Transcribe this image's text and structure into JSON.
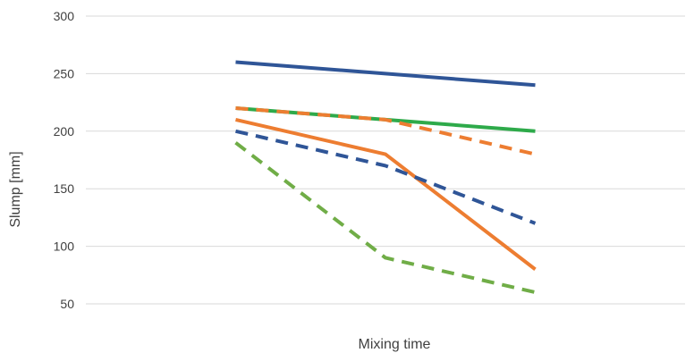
{
  "chart_data": {
    "type": "line",
    "title": "",
    "xlabel": "Mixing time",
    "ylabel": "Slump [mm]",
    "x": [
      1,
      2,
      3
    ],
    "xlim": [
      0,
      4
    ],
    "ylim": [
      50,
      300
    ],
    "yticks": [
      50,
      100,
      150,
      200,
      250,
      300
    ],
    "grid": true,
    "legend": "none",
    "series": [
      {
        "color": "#2f5597",
        "dash": "solid",
        "values": [
          260,
          250,
          240
        ]
      },
      {
        "color": "#2eaa4a",
        "dash": "solid",
        "values": [
          220,
          210,
          200
        ]
      },
      {
        "color": "#ed7d31",
        "dash": "dashed",
        "values": [
          220,
          210,
          180
        ]
      },
      {
        "color": "#ed7d31",
        "dash": "solid",
        "values": [
          210,
          180,
          80
        ]
      },
      {
        "color": "#2f5597",
        "dash": "dashed",
        "values": [
          200,
          170,
          120
        ]
      },
      {
        "color": "#70ad47",
        "dash": "dashed",
        "values": [
          190,
          90,
          60
        ]
      }
    ]
  }
}
